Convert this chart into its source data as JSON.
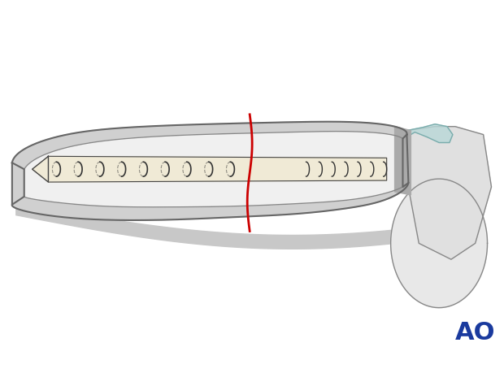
{
  "background_color": "#ffffff",
  "bone_color": "#e8e8e8",
  "bone_outline_color": "#888888",
  "bone_inner_color": "#f0f0f0",
  "screw_body_color": "#f0ead6",
  "screw_outline_color": "#333333",
  "fracture_line_color": "#cc0000",
  "cartilage_color": "#b8d8d8",
  "ao_text_color": "#1a3a9e",
  "ao_fontsize": 22,
  "title": "AO"
}
